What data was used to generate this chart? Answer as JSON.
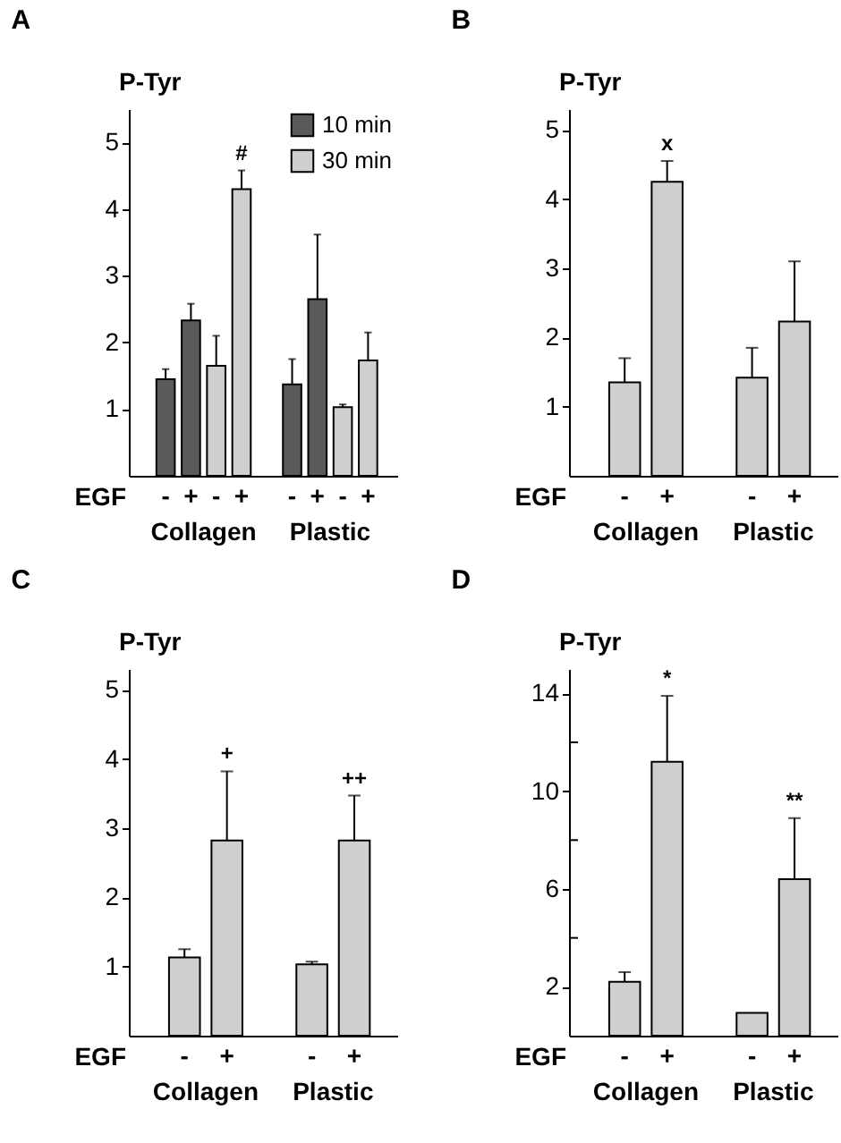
{
  "chart_data": [
    {
      "type": "bar",
      "title": "A",
      "ylabel": "P-Tyr",
      "xlabel": "EGF",
      "categories": [
        "-",
        "+",
        "-",
        "+",
        "-",
        "+",
        "-",
        "+"
      ],
      "series": [
        {
          "name": "10 min",
          "color": "#5a5a5a",
          "values": [
            1.45,
            2.33,
            null,
            null,
            1.37,
            2.65,
            null,
            null
          ],
          "errors": [
            0.15,
            0.25,
            null,
            null,
            0.38,
            0.97,
            null,
            null
          ]
        },
        {
          "name": "30 min",
          "color": "#cfcfcf",
          "values": [
            null,
            null,
            1.65,
            4.3,
            null,
            null,
            1.03,
            1.73
          ],
          "errors": [
            null,
            null,
            0.45,
            0.28,
            null,
            null,
            0.04,
            0.42
          ]
        }
      ],
      "ylim": [
        0,
        5.5
      ],
      "yticks": [
        1,
        2,
        3,
        4,
        5
      ],
      "legend": "top right",
      "annotations": [
        "Collagen",
        "Plastic",
        {
          "text": "#",
          "y": 4.58
        }
      ]
    },
    {
      "type": "bar",
      "title": "B",
      "ylabel": "P-Tyr",
      "xlabel": "EGF",
      "categories": [
        "-",
        "+",
        "-",
        "+"
      ],
      "series": [
        {
          "color": "#cfcfcf",
          "values": [
            1.35,
            4.25,
            1.42,
            2.23
          ],
          "errors": [
            0.35,
            0.3,
            0.43,
            0.87
          ]
        }
      ],
      "ylim": [
        0,
        5.3
      ],
      "yticks": [
        1,
        2,
        3,
        4,
        5
      ],
      "annotations": [
        "Collagen",
        "Plastic",
        {
          "text": "x",
          "y": 4.55
        }
      ]
    },
    {
      "type": "bar",
      "title": "C",
      "ylabel": "P-Tyr",
      "xlabel": "EGF",
      "categories": [
        "-",
        "+",
        "-",
        "+"
      ],
      "series": [
        {
          "color": "#cfcfcf",
          "values": [
            1.13,
            2.82,
            1.03,
            2.82
          ],
          "errors": [
            0.12,
            1.0,
            0.04,
            0.65
          ]
        }
      ],
      "ylim": [
        0,
        5.3
      ],
      "yticks": [
        1,
        2,
        3,
        4,
        5
      ],
      "annotations": [
        "Collagen",
        "Plastic",
        {
          "text": "+",
          "y": 3.82
        },
        {
          "text": "++",
          "y": 3.47
        }
      ]
    },
    {
      "type": "bar",
      "title": "D",
      "ylabel": "P-Tyr",
      "xlabel": "EGF",
      "categories": [
        "-",
        "+",
        "-",
        "+"
      ],
      "series": [
        {
          "color": "#cfcfcf",
          "values": [
            2.2,
            11.2,
            0.93,
            6.4
          ],
          "errors": [
            0.4,
            2.7,
            null,
            2.5
          ]
        }
      ],
      "ylim": [
        0,
        15
      ],
      "yticks": [
        2,
        {
          "value": 4,
          "label": null
        },
        6,
        {
          "value": 8,
          "label": null
        },
        10,
        {
          "value": 12,
          "label": null
        },
        14
      ],
      "annotations": [
        "Collagen",
        "Plastic",
        {
          "text": "*",
          "y": 13.9
        },
        {
          "text": "**",
          "y": 8.9
        }
      ]
    }
  ]
}
